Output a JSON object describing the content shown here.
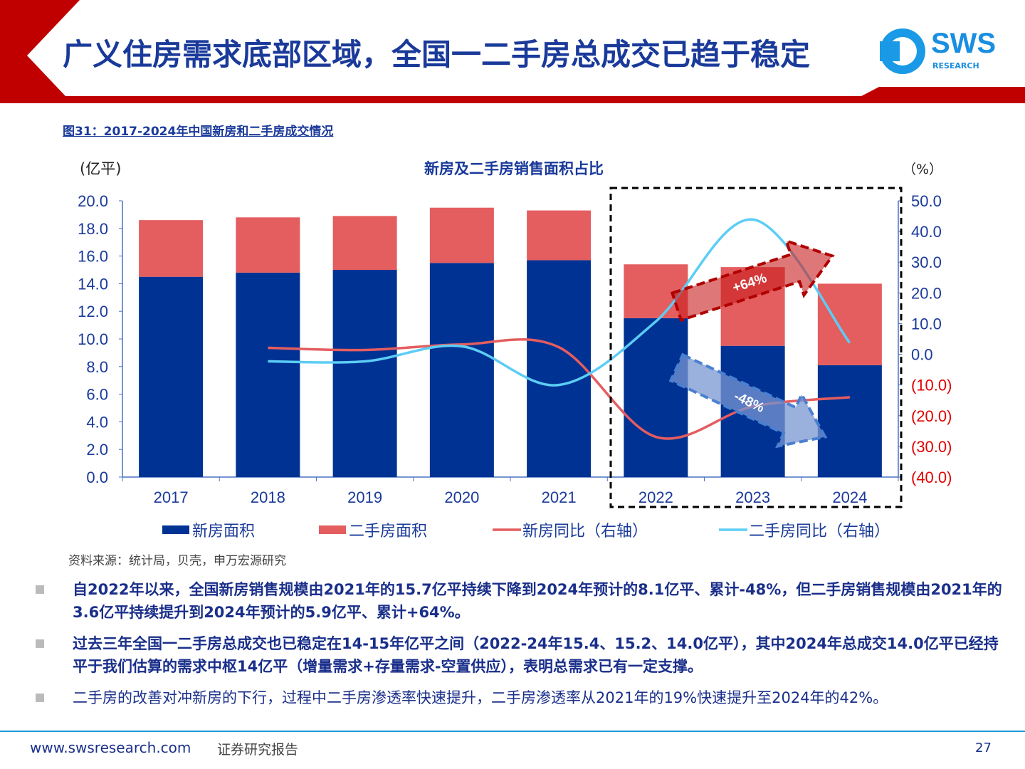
{
  "header": {
    "title": "广义住房需求底部区域，全国一二手房总成交已趋于稳定",
    "logo": "SWS",
    "logo_sub": "RESEARCH"
  },
  "figure_title": "图31：2017-2024年中国新房和二手房成交情况",
  "colors": {
    "new_area": "#003293",
    "second_area": "#e45d5f",
    "new_yoy": "#e45d5f",
    "second_yoy": "#5ccdf5",
    "accent_red": "#c00000"
  },
  "chart_data": {
    "type": "bar+line",
    "title": "新房及二手房销售面积占比",
    "ylabel_left": "(亿平)",
    "ylabel_right": "（%）",
    "categories": [
      "2017",
      "2018",
      "2019",
      "2020",
      "2021",
      "2022",
      "2023",
      "2024"
    ],
    "ylim_left": [
      0,
      20
    ],
    "ylim_right": [
      -40,
      50
    ],
    "left_ticks": [
      "0.0",
      "2.0",
      "4.0",
      "6.0",
      "8.0",
      "10.0",
      "12.0",
      "14.0",
      "16.0",
      "18.0",
      "20.0"
    ],
    "right_ticks": [
      "(40.0)",
      "(30.0)",
      "(20.0)",
      "(10.0)",
      "0.0",
      "10.0",
      "20.0",
      "30.0",
      "40.0",
      "50.0"
    ],
    "series": [
      {
        "name": "新房面积",
        "type": "bar",
        "stack": true,
        "axis": "left",
        "values": [
          14.5,
          14.8,
          15.0,
          15.5,
          15.7,
          11.5,
          9.5,
          8.1
        ]
      },
      {
        "name": "二手房面积",
        "type": "bar",
        "stack": true,
        "axis": "left",
        "values": [
          4.1,
          4.0,
          3.9,
          4.0,
          3.6,
          3.9,
          5.7,
          5.9
        ]
      },
      {
        "name": "新房同比（右轴）",
        "type": "line",
        "axis": "right",
        "values": [
          null,
          2.1,
          1.4,
          3.2,
          2.3,
          -26.9,
          -17.0,
          -14.0
        ]
      },
      {
        "name": "二手房同比（右轴）",
        "type": "line",
        "axis": "right",
        "values": [
          null,
          -2.3,
          -2.3,
          2.6,
          -10.0,
          10.7,
          43.9,
          3.7
        ]
      }
    ],
    "annotations": [
      "+64%",
      "-48%"
    ],
    "legend": "bottom",
    "grid": false
  },
  "source": "资料来源：统计局，贝壳，申万宏源研究",
  "bullets": [
    "自2022年以来，全国新房销售规模由2021年的15.7亿平持续下降到2024年预计的8.1亿平、累计-48%，但二手房销售规模由2021年的3.6亿平持续提升到2024年预计的5.9亿平、累计+64%。",
    "过去三年全国一二手房总成交也已稳定在14-15年亿平之间（2022-24年15.4、15.2、14.0亿平），其中2024年总成交14.0亿平已经持平于我们估算的需求中枢14亿平（增量需求+存量需求-空置供应），表明总需求已有一定支撑。",
    "二手房的改善对冲新房的下行，过程中二手房渗透率快速提升，二手房渗透率从2021年的19%快速提升至2024年的42%。"
  ],
  "footer": {
    "url": "www.swsresearch.com",
    "label": "证券研究报告",
    "page": "27"
  }
}
